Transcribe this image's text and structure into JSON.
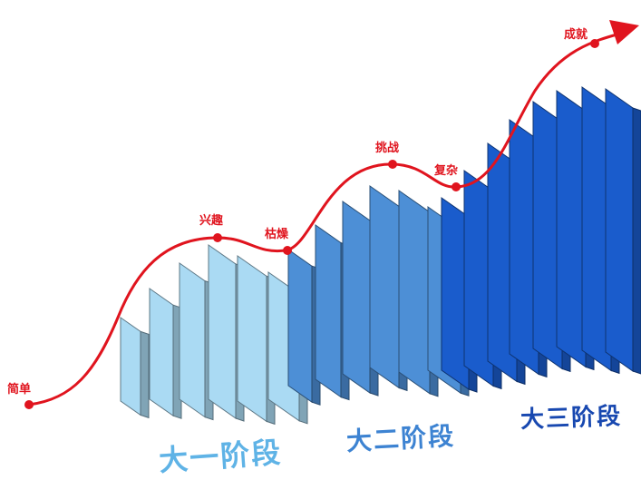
{
  "curve": {
    "color": "#e0141e",
    "points": [
      {
        "key": "simple",
        "label": "简单"
      },
      {
        "key": "interest",
        "label": "兴趣"
      },
      {
        "key": "boredom",
        "label": "枯燥"
      },
      {
        "key": "challenge",
        "label": "挑战"
      },
      {
        "key": "complex",
        "label": "复杂"
      },
      {
        "key": "achievement",
        "label": "成就"
      }
    ]
  },
  "stages": [
    {
      "label": "大一阶段",
      "color": "#5fb3e6",
      "panel_fill": "#aadaf3"
    },
    {
      "label": "大二阶段",
      "color": "#3d83d2",
      "panel_fill": "#4d8fd6"
    },
    {
      "label": "大三阶段",
      "color": "#1848b0",
      "panel_fill": "#1a5ccc"
    }
  ]
}
